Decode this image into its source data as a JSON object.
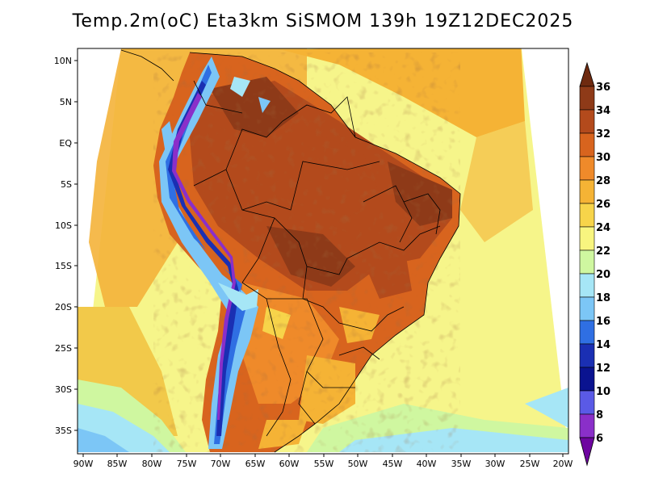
{
  "title": "Temp.2m(oC) Eta3km SiSMOM 139h 19Z12DEC2025",
  "map": {
    "lat_labels": [
      "10N",
      "5N",
      "EQ",
      "5S",
      "10S",
      "15S",
      "20S",
      "25S",
      "30S",
      "35S"
    ],
    "lon_labels": [
      "90W",
      "85W",
      "80W",
      "75W",
      "70W",
      "65W",
      "60W",
      "55W",
      "50W",
      "45W",
      "40W",
      "35W",
      "30W",
      "25W",
      "20W"
    ]
  },
  "colorbar": {
    "labels": [
      "36",
      "34",
      "32",
      "30",
      "28",
      "26",
      "24",
      "22",
      "20",
      "18",
      "16",
      "14",
      "12",
      "10",
      "8",
      "6"
    ],
    "colors": [
      "#6e2a10",
      "#8e3a18",
      "#b34a1c",
      "#d8641e",
      "#ef8a2a",
      "#f5b335",
      "#f7d44a",
      "#f8f57f",
      "#cff7a0",
      "#a6e6f6",
      "#7cc6f6",
      "#2f6fe3",
      "#1a2fb3",
      "#0a1390",
      "#5a5ae6",
      "#8a2fc9",
      "#6e05a0"
    ]
  }
}
